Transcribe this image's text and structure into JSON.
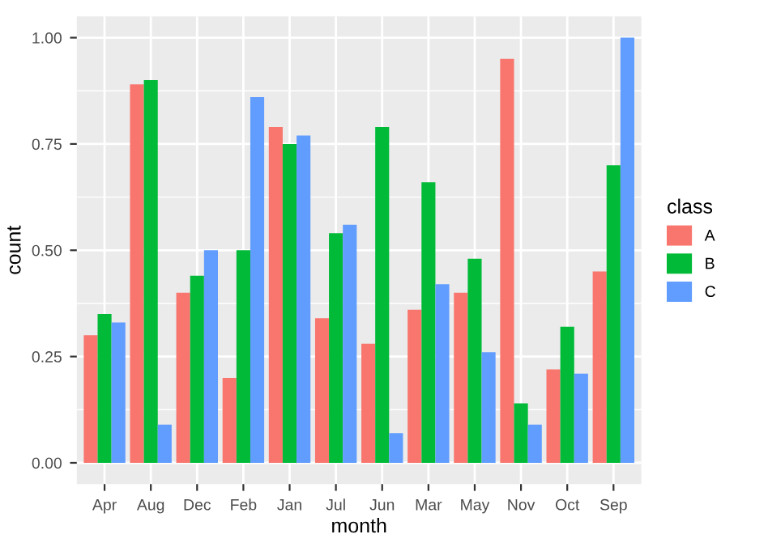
{
  "chart_data": {
    "type": "bar",
    "xlabel": "month",
    "ylabel": "count",
    "legend_title": "class",
    "categories": [
      "Apr",
      "Aug",
      "Dec",
      "Feb",
      "Jan",
      "Jul",
      "Jun",
      "Mar",
      "May",
      "Nov",
      "Oct",
      "Sep"
    ],
    "series": [
      {
        "name": "A",
        "color": "#f8766d",
        "values": [
          0.3,
          0.89,
          0.4,
          0.2,
          0.79,
          0.34,
          0.28,
          0.36,
          0.4,
          0.95,
          0.22,
          0.45
        ]
      },
      {
        "name": "B",
        "color": "#00ba38",
        "values": [
          0.35,
          0.9,
          0.44,
          0.5,
          0.75,
          0.54,
          0.79,
          0.66,
          0.48,
          0.14,
          0.32,
          0.7
        ]
      },
      {
        "name": "C",
        "color": "#619cff",
        "values": [
          0.33,
          0.09,
          0.5,
          0.86,
          0.77,
          0.56,
          0.07,
          0.42,
          0.26,
          0.09,
          0.21,
          1.0
        ]
      }
    ],
    "ylim": [
      -0.05,
      1.05
    ],
    "yticks": [
      {
        "value": 0,
        "label": "0.00"
      },
      {
        "value": 0.25,
        "label": "0.25"
      },
      {
        "value": 0.5,
        "label": "0.50"
      },
      {
        "value": 0.75,
        "label": "0.75"
      },
      {
        "value": 1,
        "label": "1.00"
      }
    ],
    "grid": true,
    "legend": "right"
  }
}
